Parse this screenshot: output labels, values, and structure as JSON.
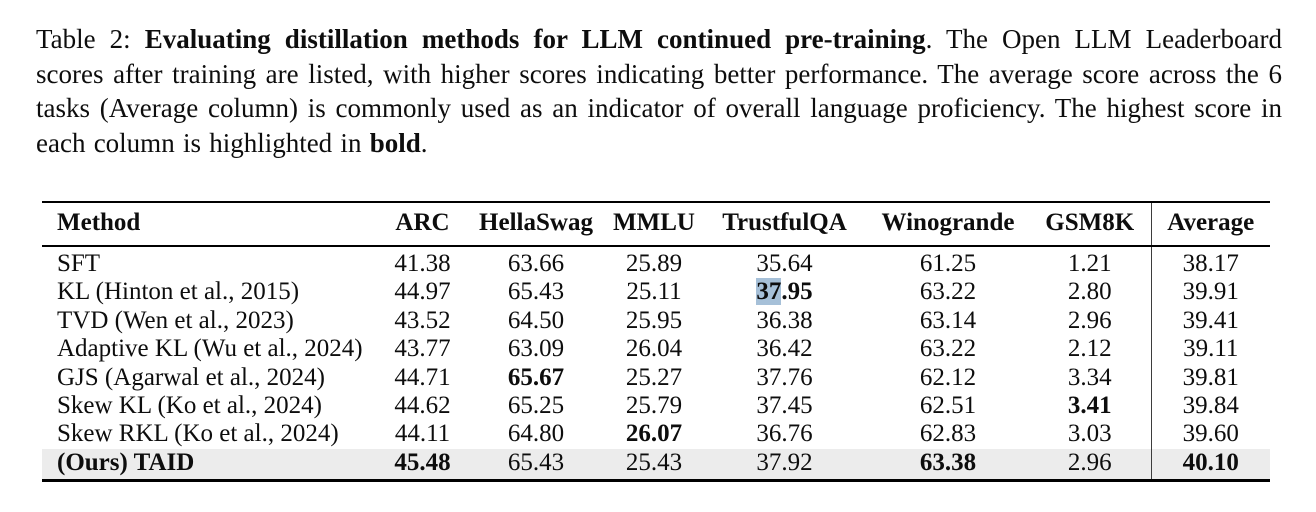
{
  "caption": {
    "label": "Table 2: ",
    "title_bold": "Evaluating distillation methods for LLM continued pre-training",
    "body_text": ". The Open LLM Leaderboard scores after training are listed, with higher scores indicating better performance. The average score across the 6 tasks (Average column) is commonly used as an indicator of overall language proficiency. The highest score in each column is highlighted in ",
    "bold_word": "bold",
    "period": "."
  },
  "colors": {
    "highlight_row_bg": "#ececec",
    "selection_bg": "#a6c0d8",
    "rule_color": "#000000",
    "divider_color": "#3d3d3d"
  },
  "table": {
    "columns": [
      {
        "key": "method",
        "label": "Method"
      },
      {
        "key": "arc",
        "label": "ARC"
      },
      {
        "key": "hellaswag",
        "label": "HellaSwag"
      },
      {
        "key": "mmlu",
        "label": "MMLU"
      },
      {
        "key": "trustfulqa",
        "label": "TrustfulQA"
      },
      {
        "key": "winogrande",
        "label": "Winogrande"
      },
      {
        "key": "gsm8k",
        "label": "GSM8K"
      },
      {
        "key": "average",
        "label": "Average"
      }
    ],
    "rows": [
      {
        "method": "SFT",
        "method_bold": false,
        "highlight_row": false,
        "values": [
          "41.38",
          "63.66",
          "25.89",
          "35.64",
          "61.25",
          "1.21",
          "38.17"
        ],
        "bold": []
      },
      {
        "method": "KL (Hinton et al., 2015)",
        "method_bold": false,
        "highlight_row": false,
        "values": [
          "44.97",
          "65.43",
          "25.11",
          "37.95",
          "63.22",
          "2.80",
          "39.91"
        ],
        "bold": [
          3
        ],
        "selection": {
          "col": 3,
          "text": "37"
        }
      },
      {
        "method": "TVD (Wen et al., 2023)",
        "method_bold": false,
        "highlight_row": false,
        "values": [
          "43.52",
          "64.50",
          "25.95",
          "36.38",
          "63.14",
          "2.96",
          "39.41"
        ],
        "bold": []
      },
      {
        "method": "Adaptive KL (Wu et al., 2024)",
        "method_bold": false,
        "highlight_row": false,
        "values": [
          "43.77",
          "63.09",
          "26.04",
          "36.42",
          "63.22",
          "2.12",
          "39.11"
        ],
        "bold": []
      },
      {
        "method": "GJS (Agarwal et al., 2024)",
        "method_bold": false,
        "highlight_row": false,
        "values": [
          "44.71",
          "65.67",
          "25.27",
          "37.76",
          "62.12",
          "3.34",
          "39.81"
        ],
        "bold": [
          1
        ]
      },
      {
        "method": "Skew KL (Ko et al., 2024)",
        "method_bold": false,
        "highlight_row": false,
        "values": [
          "44.62",
          "65.25",
          "25.79",
          "37.45",
          "62.51",
          "3.41",
          "39.84"
        ],
        "bold": [
          5
        ]
      },
      {
        "method": "Skew RKL (Ko et al., 2024)",
        "method_bold": false,
        "highlight_row": false,
        "values": [
          "44.11",
          "64.80",
          "26.07",
          "36.76",
          "62.83",
          "3.03",
          "39.60"
        ],
        "bold": [
          2
        ]
      },
      {
        "method": "(Ours) TAID",
        "method_bold": true,
        "highlight_row": true,
        "values": [
          "45.48",
          "65.43",
          "25.43",
          "37.92",
          "63.38",
          "2.96",
          "40.10"
        ],
        "bold": [
          0,
          4,
          6
        ]
      }
    ]
  }
}
